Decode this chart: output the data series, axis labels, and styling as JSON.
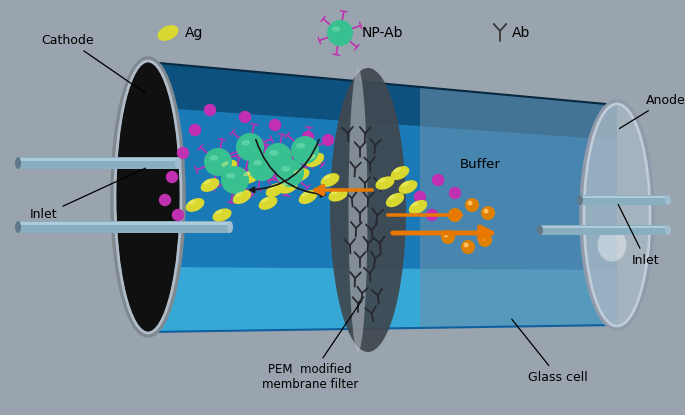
{
  "bg_color": "#9aa4ae",
  "labels": {
    "PEM_modified": "PEM  modified\nmembrane filter",
    "Glass_cell": "Glass cell",
    "Inlet_left": "Inlet",
    "Inlet_right": "Inlet",
    "Cathode": "Cathode",
    "Anode": "Anode",
    "Buffer": "Buffer"
  },
  "legend": {
    "Ag": "Ag",
    "NP_Ab": "NP-Ab",
    "Ab": "Ab"
  },
  "colors": {
    "arrow_orange": "#e87800",
    "ag_yellow": "#d8d830",
    "np_teal": "#38c090",
    "antibody_magenta": "#c030b0",
    "antigen_orange": "#e08000",
    "inlet_pipe": "#90b0c8",
    "black_end": "#101010",
    "text_color": "#000000"
  },
  "figsize": [
    6.85,
    4.15
  ],
  "dpi": 100
}
